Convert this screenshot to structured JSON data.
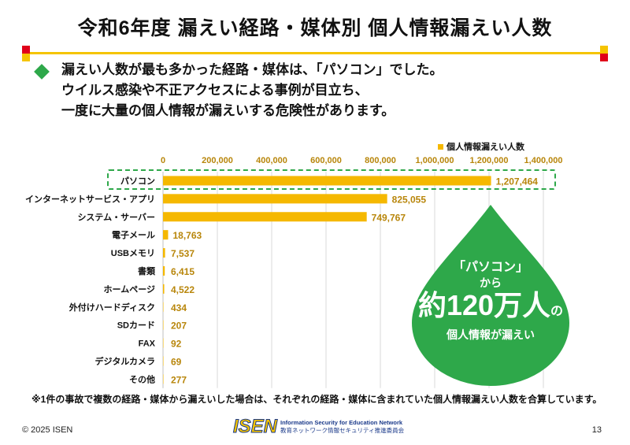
{
  "title": "令和6年度 漏えい経路・媒体別 個人情報漏えい人数",
  "lead": [
    "漏えい人数が最も多かった経路・媒体は、「パソコン」でした。",
    "ウイルス感染や不正アクセスによる事例が目立ち、",
    "一度に大量の個人情報が漏えいする危険性があります。"
  ],
  "colors": {
    "accent": "#f5b800",
    "green": "#2ea84a",
    "axis_text": "#b8860b"
  },
  "callout": {
    "line1": "「パソコン」",
    "line2": "から",
    "line3_main": "約120万人",
    "line3_suffix": "の",
    "line4": "個人情報が漏えい"
  },
  "footnote": "※1件の事故で複数の経路・媒体から漏えいした場合は、それぞれの経路・媒体に含まれていた個人情報漏えい人数を合算しています。",
  "footer": {
    "copyright": "© 2025 ISEN",
    "page_number": "13",
    "logo_mark": "ISEN",
    "logo_en": "Information Security for Education Network",
    "logo_jp": "教育ネットワーク情報セキュリティ推進委員会"
  },
  "chart_data": {
    "type": "bar",
    "orientation": "horizontal",
    "series": [
      {
        "name": "個人情報漏えい人数",
        "values": [
          1207464,
          825055,
          749767,
          18763,
          7537,
          6415,
          4522,
          434,
          207,
          92,
          69,
          277
        ]
      }
    ],
    "categories": [
      "パソコン",
      "インターネットサービス・アプリ",
      "システム・サーバー",
      "電子メール",
      "USBメモリ",
      "書類",
      "ホームページ",
      "外付けハードディスク",
      "SDカード",
      "FAX",
      "デジタルカメラ",
      "その他"
    ],
    "value_labels": [
      "1,207,464",
      "825,055",
      "749,767",
      "18,763",
      "7,537",
      "6,415",
      "4,522",
      "434",
      "207",
      "92",
      "69",
      "277"
    ],
    "xlim": [
      0,
      1400000
    ],
    "x_ticks": [
      0,
      200000,
      400000,
      600000,
      800000,
      1000000,
      1200000,
      1400000
    ],
    "x_tick_labels": [
      "0",
      "200,000",
      "400,000",
      "600,000",
      "800,000",
      "1,000,000",
      "1,200,000",
      "1,400,000"
    ],
    "legend": "top-right",
    "grid": true
  }
}
